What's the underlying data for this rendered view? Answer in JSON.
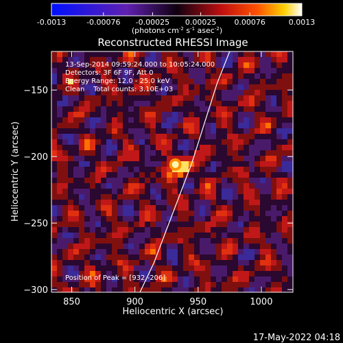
{
  "colorbar": {
    "tick_labels": [
      "-0.0013",
      "-0.00076",
      "-0.00025",
      "0.00025",
      "0.00076",
      "0.0013"
    ],
    "tick_values": [
      -0.0013,
      -0.00076,
      -0.00025,
      0.00025,
      0.00076,
      0.0013
    ],
    "range": [
      -0.0013,
      0.0013
    ],
    "units_parts": [
      "(photons cm",
      "-2",
      " s",
      "-1",
      " asec",
      "-2",
      ")"
    ]
  },
  "chart_data": {
    "type": "heatmap",
    "title": "Reconstructed RHESSI Image",
    "xlabel": "Heliocentric X (arcsec)",
    "ylabel": "Heliocentric Y (arcsec)",
    "xlim": [
      834,
      1025
    ],
    "ylim": [
      -302,
      -121
    ],
    "x_ticks": [
      850,
      900,
      950,
      1000
    ],
    "x_tick_labels": [
      "850",
      "900",
      "950",
      "1000"
    ],
    "y_ticks": [
      -150,
      -200,
      -250,
      -300
    ],
    "y_tick_labels": [
      "−150",
      "−200",
      "−250",
      "−300"
    ],
    "peak": {
      "x": 932,
      "y": -206,
      "value": 0.0013
    },
    "limb_curve": [
      [
        904,
        -302
      ],
      [
        915,
        -280
      ],
      [
        925,
        -255
      ],
      [
        935,
        -230
      ],
      [
        945,
        -205
      ],
      [
        955,
        -175
      ],
      [
        965,
        -145
      ],
      [
        975,
        -121
      ]
    ],
    "annotations": [
      "13-Sep-2014 09:59:24.000 to 10:05:24.000",
      "Detectors: 3F 6F 9F, Att 0",
      "Energy Range: 12.0 - 25.0 keV",
      "Clean    Total counts: 3.10E+03"
    ],
    "peak_label": "Position of Peak = [932,-206]",
    "colormap": "blue-purple-red-yellow-white"
  },
  "footer": {
    "timestamp": "17-May-2022 04:18"
  }
}
